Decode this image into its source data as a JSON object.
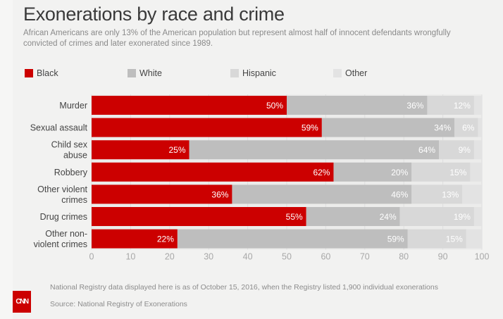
{
  "header": {
    "title": "Exonerations by race and crime",
    "subtitle": "African Americans are only 13% of the American population but represent almost half of innocent defendants wrongfully convicted of crimes and later exonerated since 1989."
  },
  "footer": {
    "note": "National Registry data displayed here is as of October 15, 2016, when the Registry listed 1,900 individual exonerations",
    "source": "Source: National Registry of Exonerations",
    "logo_text": "CNN"
  },
  "colors": {
    "black": "#cc0000",
    "white": "#bebebe",
    "hispanic": "#d8d8d8",
    "other": "#e3e3e3",
    "grid": "#dedede"
  },
  "chart_data": {
    "type": "bar",
    "orientation": "horizontal",
    "stacked": true,
    "title": "Exonerations by race and crime",
    "xlabel": "",
    "ylabel": "",
    "xlim": [
      0,
      100
    ],
    "xticks": [
      0,
      10,
      20,
      30,
      40,
      50,
      60,
      70,
      80,
      90,
      100
    ],
    "grid": true,
    "legend_position": "top",
    "categories": [
      [
        "Murder"
      ],
      [
        "Sexual assault"
      ],
      [
        "Child sex",
        "abuse"
      ],
      [
        "Robbery"
      ],
      [
        "Other violent",
        "crimes"
      ],
      [
        "Drug crimes"
      ],
      [
        "Other non-",
        "violent crimes"
      ]
    ],
    "series": [
      {
        "name": "Black",
        "color_key": "black",
        "values": [
          50,
          59,
          25,
          62,
          36,
          55,
          22
        ]
      },
      {
        "name": "White",
        "color_key": "white",
        "values": [
          36,
          34,
          64,
          20,
          46,
          24,
          59
        ]
      },
      {
        "name": "Hispanic",
        "color_key": "hispanic",
        "values": [
          12,
          6,
          9,
          15,
          13,
          19,
          15
        ]
      },
      {
        "name": "Other",
        "color_key": "other",
        "values": [
          2,
          1,
          2,
          3,
          5,
          2,
          4
        ]
      }
    ],
    "labeled_series": [
      "Black",
      "White",
      "Hispanic"
    ]
  }
}
